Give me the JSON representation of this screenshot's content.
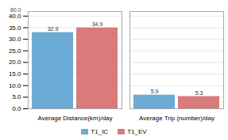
{
  "chart_data": {
    "type": "bar",
    "categories": [
      "Average Distance(km)/day",
      "Average Trip (number)/day"
    ],
    "series": [
      {
        "name": "T1_IC",
        "color": "#6aaad5",
        "values": [
          32.9,
          5.9
        ]
      },
      {
        "name": "T1_EV",
        "color": "#d97b7b",
        "values": [
          34.9,
          5.3
        ]
      }
    ],
    "ylim": [
      0,
      42
    ],
    "yticks": [
      {
        "value": 0,
        "label": "0.0"
      },
      {
        "value": 5,
        "label": "5.0"
      },
      {
        "value": 10,
        "label": "10.0"
      },
      {
        "value": 15,
        "label": "15.0"
      },
      {
        "value": 20,
        "label": "20.0"
      },
      {
        "value": 25,
        "label": "25.0"
      },
      {
        "value": 30,
        "label": "30.0"
      },
      {
        "value": 35,
        "label": "35.0"
      },
      {
        "value": 40,
        "label": "40.0"
      }
    ],
    "annotations": [
      {
        "text": "60.0",
        "y": 41.5
      }
    ],
    "data_labels": true,
    "grid": true,
    "legend": "bottom"
  }
}
